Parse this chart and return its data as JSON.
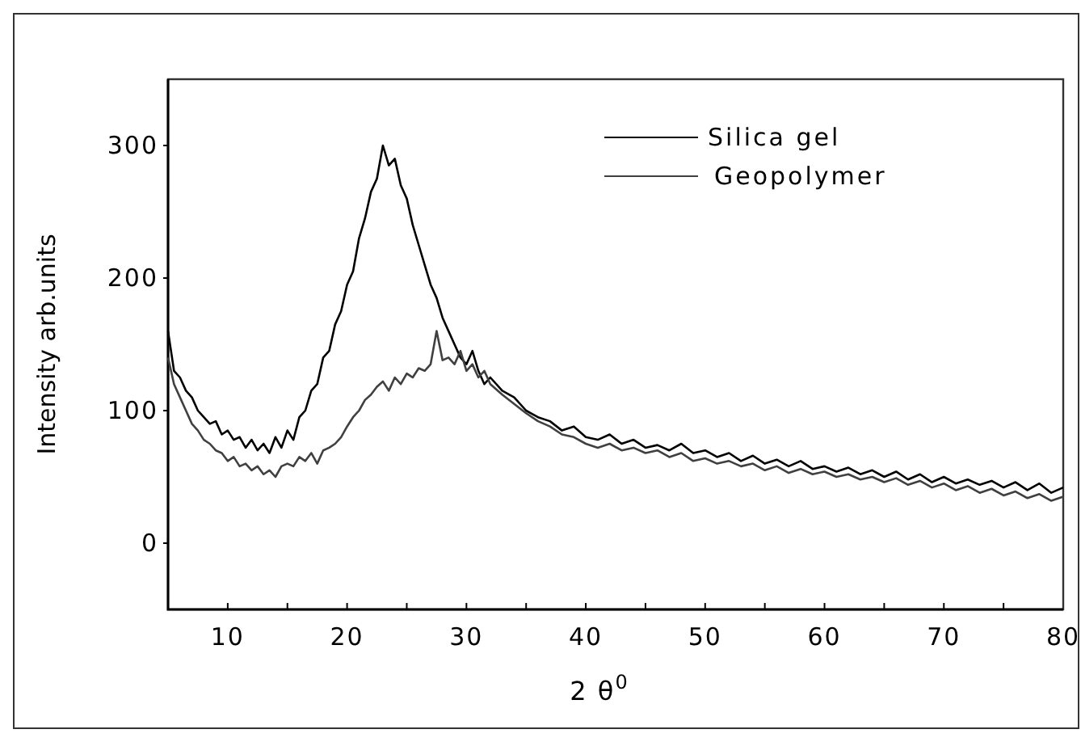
{
  "chart_data": {
    "type": "line",
    "xlabel": "2 θ$^{0}$",
    "ylabel": "Intensity arb.units",
    "xlim": [
      5,
      80
    ],
    "ylim": [
      -50,
      350
    ],
    "xticks": [
      10,
      {
        "value": 15,
        "label": null
      },
      20,
      {
        "value": 25,
        "label": null
      },
      30,
      {
        "value": 35,
        "label": null
      },
      40,
      {
        "value": 45,
        "label": null
      },
      50,
      {
        "value": 55,
        "label": null
      },
      60,
      {
        "value": 65,
        "label": null
      },
      70,
      {
        "value": 75,
        "label": null
      },
      80
    ],
    "yticks": [
      0,
      100,
      200,
      300
    ],
    "legend": "top right",
    "grid": false,
    "line_style": "solid",
    "marker": "none",
    "x": [
      5,
      5.5,
      6,
      6.5,
      7,
      7.5,
      8,
      8.5,
      9,
      9.5,
      10,
      10.5,
      11,
      11.5,
      12,
      12.5,
      13,
      13.5,
      14,
      14.5,
      15,
      15.5,
      16,
      16.5,
      17,
      17.5,
      18,
      18.5,
      19,
      19.5,
      20,
      20.5,
      21,
      21.5,
      22,
      22.5,
      23,
      23.5,
      24,
      24.5,
      25,
      25.5,
      26,
      26.5,
      27,
      27.5,
      28,
      28.5,
      29,
      29.5,
      30,
      30.5,
      31,
      31.5,
      32,
      33,
      34,
      35,
      36,
      37,
      38,
      39,
      40,
      41,
      42,
      43,
      44,
      45,
      46,
      47,
      48,
      49,
      50,
      51,
      52,
      53,
      54,
      55,
      56,
      57,
      58,
      59,
      60,
      61,
      62,
      63,
      64,
      65,
      66,
      67,
      68,
      69,
      70,
      71,
      72,
      73,
      74,
      75,
      76,
      77,
      78,
      79,
      80
    ],
    "series": [
      {
        "name": "Silica gel",
        "color": "#000000",
        "values": [
          160,
          130,
          125,
          115,
          110,
          100,
          95,
          90,
          92,
          82,
          85,
          78,
          80,
          72,
          78,
          70,
          75,
          68,
          80,
          72,
          85,
          78,
          95,
          100,
          115,
          120,
          140,
          145,
          165,
          175,
          195,
          205,
          230,
          245,
          265,
          275,
          300,
          285,
          290,
          270,
          260,
          240,
          225,
          210,
          195,
          185,
          170,
          160,
          150,
          140,
          135,
          145,
          130,
          120,
          125,
          115,
          110,
          100,
          95,
          92,
          85,
          88,
          80,
          78,
          82,
          75,
          78,
          72,
          74,
          70,
          75,
          68,
          70,
          65,
          68,
          62,
          66,
          60,
          63,
          58,
          62,
          56,
          58,
          54,
          57,
          52,
          55,
          50,
          54,
          48,
          52,
          46,
          50,
          45,
          48,
          44,
          47,
          42,
          46,
          40,
          45,
          38,
          42
        ]
      },
      {
        "name": "Geopolymer",
        "color": "#404040",
        "values": [
          140,
          120,
          110,
          100,
          90,
          85,
          78,
          75,
          70,
          68,
          62,
          65,
          58,
          60,
          55,
          58,
          52,
          55,
          50,
          58,
          60,
          58,
          65,
          62,
          68,
          60,
          70,
          72,
          75,
          80,
          88,
          95,
          100,
          108,
          112,
          118,
          122,
          115,
          125,
          120,
          128,
          125,
          132,
          130,
          135,
          160,
          138,
          140,
          135,
          145,
          130,
          135,
          125,
          130,
          120,
          112,
          105,
          98,
          92,
          88,
          82,
          80,
          75,
          72,
          75,
          70,
          72,
          68,
          70,
          65,
          68,
          62,
          64,
          60,
          62,
          58,
          60,
          55,
          58,
          53,
          56,
          52,
          54,
          50,
          52,
          48,
          50,
          46,
          49,
          44,
          47,
          42,
          45,
          40,
          43,
          38,
          41,
          36,
          39,
          34,
          37,
          32,
          35
        ]
      }
    ]
  }
}
